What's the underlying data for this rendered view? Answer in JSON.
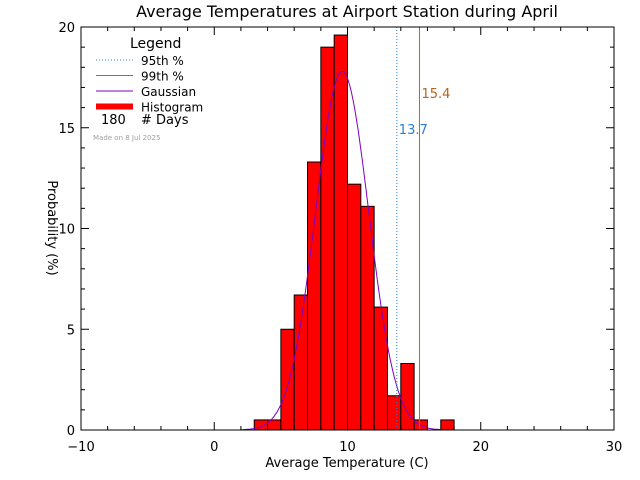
{
  "chart_data": {
    "type": "bar",
    "title": "Average Temperatures at Airport Station during April",
    "xlabel": "Average Temperature (C)",
    "ylabel": "Probability (%)",
    "xlim": [
      -10,
      30
    ],
    "ylim": [
      0,
      20
    ],
    "x_ticks": [
      -10,
      0,
      10,
      20,
      30
    ],
    "y_ticks": [
      0,
      5,
      10,
      15,
      20
    ],
    "bin_width": 1,
    "bins": [
      {
        "x0": 3,
        "value": 0.5
      },
      {
        "x0": 4,
        "value": 0.5
      },
      {
        "x0": 5,
        "value": 5.0
      },
      {
        "x0": 6,
        "value": 6.7
      },
      {
        "x0": 7,
        "value": 13.3
      },
      {
        "x0": 8,
        "value": 19.0
      },
      {
        "x0": 9,
        "value": 19.6
      },
      {
        "x0": 10,
        "value": 12.2
      },
      {
        "x0": 11,
        "value": 11.1
      },
      {
        "x0": 12,
        "value": 6.1
      },
      {
        "x0": 13,
        "value": 1.7
      },
      {
        "x0": 14,
        "value": 3.3
      },
      {
        "x0": 15,
        "value": 0.5
      },
      {
        "x0": 17,
        "value": 0.5
      }
    ],
    "gaussian": {
      "mean": 9.6,
      "sd": 2.0,
      "peak": 17.8
    },
    "percentiles": [
      {
        "label": "13.7",
        "value": 13.7,
        "color": "#2a7fd4",
        "dotted": true
      },
      {
        "label": "15.4",
        "value": 15.4,
        "color": "#b5651d",
        "dotted": false
      }
    ],
    "legend": {
      "title": "Legend",
      "entries": [
        {
          "label": "95th %",
          "color": "#2a7fd4",
          "style": "dotted"
        },
        {
          "label": "99th %",
          "color": "#b5651d",
          "style": "solid"
        },
        {
          "label": "Gaussian",
          "color": "#8000c0",
          "style": "solid"
        },
        {
          "label": "Histogram",
          "color": "#ff0000",
          "style": "thick"
        }
      ],
      "count_value": "180",
      "count_label": "# Days",
      "made_on": "Made on 8 Jul 2025"
    },
    "colors": {
      "histogram": "#ff0000",
      "gaussian": "#8000c0",
      "p95": "#2a7fd4",
      "p99": "#b5651d",
      "made_on": "#a0a0a0"
    }
  }
}
